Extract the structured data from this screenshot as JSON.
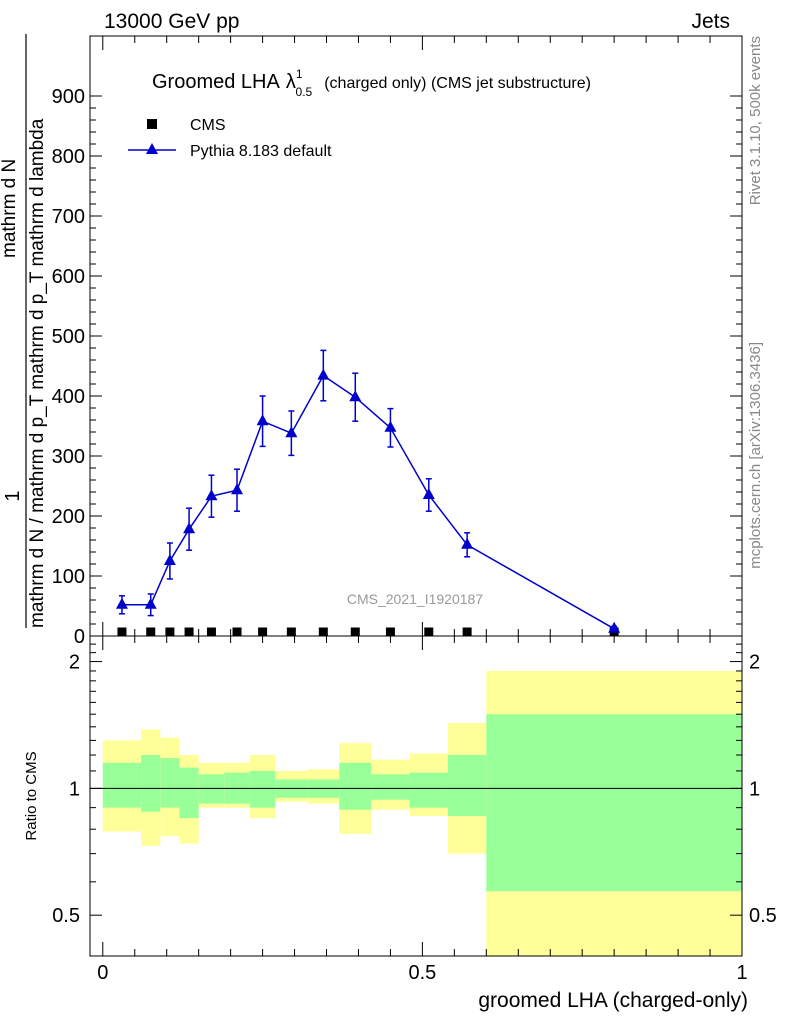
{
  "header": {
    "left": "13000 GeV pp",
    "right": "Jets"
  },
  "side_labels": {
    "rivet": "Rivet 3.1.10,  500k events",
    "mcplots": "mcplots.cern.ch [arXiv:1306.3436]"
  },
  "chart_data": [
    {
      "type": "line",
      "panel": "main",
      "title": {
        "main": "Groomed LHA",
        "lambda": "λ",
        "sup": "1",
        "sub": "0.5",
        "suffix": "(charged only) (CMS jet substructure)"
      },
      "watermark": "CMS_2021_I1920187",
      "ylabel": {
        "one": "1",
        "denom": "mathrm d N / mathrm d p_T mathrm d p_T mathrm d lambda",
        "numer": "mathrm d N"
      },
      "ylim": [
        0,
        1000
      ],
      "yticks": [
        0,
        100,
        200,
        300,
        400,
        500,
        600,
        700,
        800,
        900
      ],
      "xlim": [
        -0.02,
        1.0
      ],
      "legend": {
        "position": "top-left",
        "entries": [
          "CMS",
          "Pythia 8.183 default"
        ]
      },
      "series": [
        {
          "name": "CMS",
          "marker": "square",
          "color": "#000000",
          "x": [
            0.03,
            0.075,
            0.105,
            0.135,
            0.17,
            0.21,
            0.25,
            0.295,
            0.345,
            0.395,
            0.45,
            0.51,
            0.57,
            0.8
          ],
          "y": [
            0,
            0,
            0,
            0,
            0,
            0,
            0,
            0,
            0,
            0,
            0,
            0,
            0,
            0
          ]
        },
        {
          "name": "Pythia 8.183 default",
          "marker": "triangle",
          "color": "#0000cc",
          "x": [
            0.03,
            0.075,
            0.105,
            0.135,
            0.17,
            0.21,
            0.25,
            0.295,
            0.345,
            0.395,
            0.45,
            0.51,
            0.57,
            0.8
          ],
          "y": [
            52,
            52,
            125,
            178,
            233,
            243,
            358,
            338,
            434,
            398,
            347,
            235,
            152,
            12
          ],
          "err": [
            15,
            18,
            30,
            35,
            35,
            35,
            42,
            37,
            42,
            40,
            32,
            27,
            20,
            4
          ]
        }
      ]
    },
    {
      "type": "area",
      "panel": "ratio",
      "ylabel": "Ratio to CMS",
      "xlabel": "groomed LHA (charged-only)",
      "yscale": "log",
      "ylim": [
        0.4,
        2.3
      ],
      "yticks": [
        0.5,
        1,
        2
      ],
      "xlim": [
        -0.02,
        1.0
      ],
      "xticks": [
        0,
        0.5,
        1
      ],
      "bins": [
        {
          "lo": 0.0,
          "hi": 0.06,
          "in_lo": 0.9,
          "in_hi": 1.15,
          "out_lo": 0.79,
          "out_hi": 1.3
        },
        {
          "lo": 0.06,
          "hi": 0.09,
          "in_lo": 0.88,
          "in_hi": 1.2,
          "out_lo": 0.73,
          "out_hi": 1.38
        },
        {
          "lo": 0.09,
          "hi": 0.12,
          "in_lo": 0.9,
          "in_hi": 1.18,
          "out_lo": 0.77,
          "out_hi": 1.32
        },
        {
          "lo": 0.12,
          "hi": 0.15,
          "in_lo": 0.85,
          "in_hi": 1.12,
          "out_lo": 0.74,
          "out_hi": 1.2
        },
        {
          "lo": 0.15,
          "hi": 0.19,
          "in_lo": 0.92,
          "in_hi": 1.08,
          "out_lo": 0.9,
          "out_hi": 1.15
        },
        {
          "lo": 0.19,
          "hi": 0.23,
          "in_lo": 0.92,
          "in_hi": 1.09,
          "out_lo": 0.9,
          "out_hi": 1.15
        },
        {
          "lo": 0.23,
          "hi": 0.27,
          "in_lo": 0.9,
          "in_hi": 1.1,
          "out_lo": 0.85,
          "out_hi": 1.2
        },
        {
          "lo": 0.27,
          "hi": 0.32,
          "in_lo": 0.95,
          "in_hi": 1.05,
          "out_lo": 0.93,
          "out_hi": 1.1
        },
        {
          "lo": 0.32,
          "hi": 0.37,
          "in_lo": 0.95,
          "in_hi": 1.05,
          "out_lo": 0.92,
          "out_hi": 1.11
        },
        {
          "lo": 0.37,
          "hi": 0.42,
          "in_lo": 0.89,
          "in_hi": 1.15,
          "out_lo": 0.78,
          "out_hi": 1.28
        },
        {
          "lo": 0.42,
          "hi": 0.48,
          "in_lo": 0.94,
          "in_hi": 1.08,
          "out_lo": 0.89,
          "out_hi": 1.17
        },
        {
          "lo": 0.48,
          "hi": 0.54,
          "in_lo": 0.9,
          "in_hi": 1.09,
          "out_lo": 0.86,
          "out_hi": 1.21
        },
        {
          "lo": 0.54,
          "hi": 0.6,
          "in_lo": 0.86,
          "in_hi": 1.2,
          "out_lo": 0.7,
          "out_hi": 1.43
        },
        {
          "lo": 0.6,
          "hi": 1.0,
          "in_lo": 0.57,
          "in_hi": 1.5,
          "out_lo": 0.4,
          "out_hi": 1.9
        }
      ],
      "colors": {
        "inner": "#99ff99",
        "outer": "#ffff99"
      }
    }
  ]
}
